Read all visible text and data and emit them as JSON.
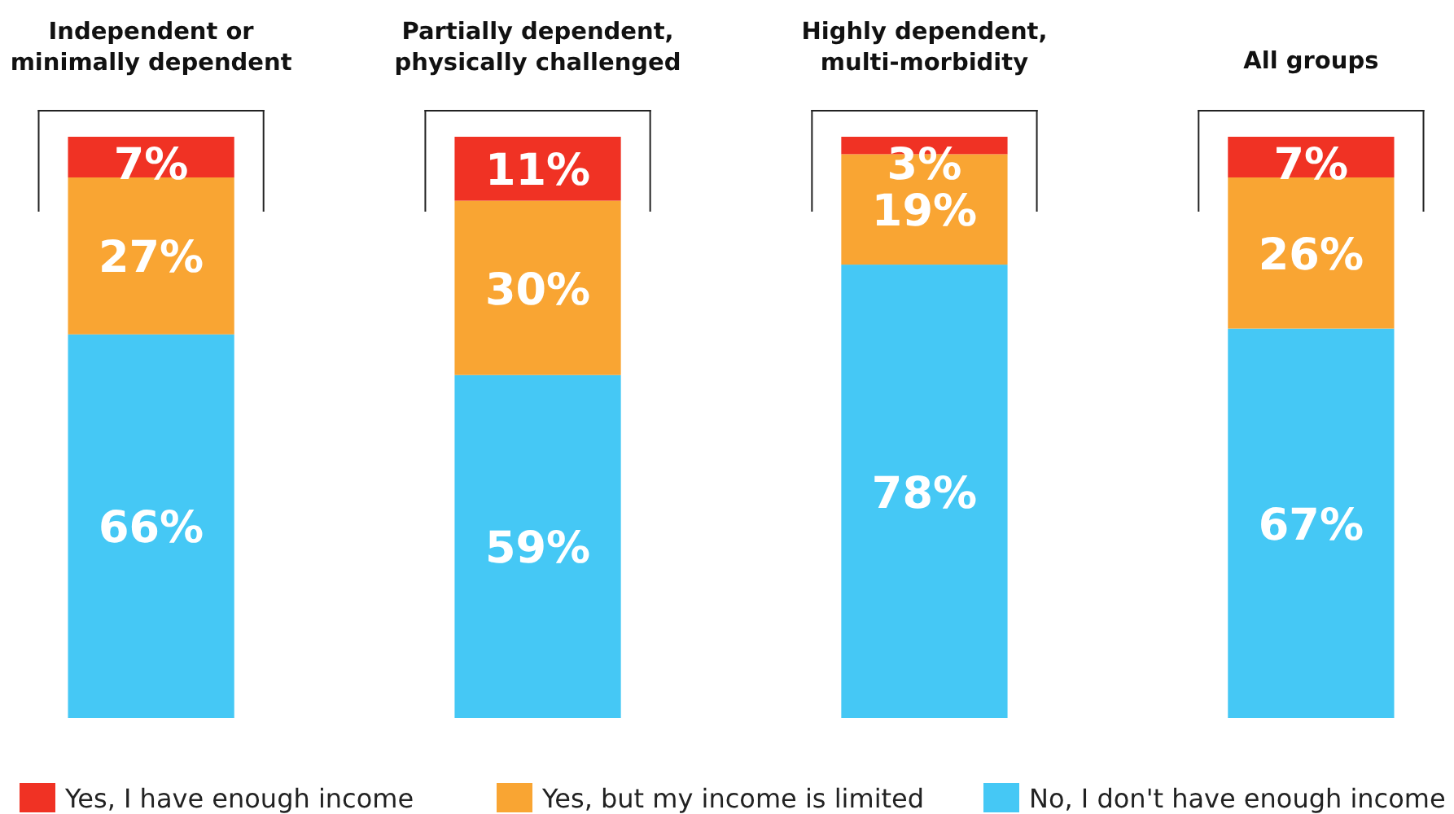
{
  "chart_data": {
    "type": "bar",
    "stacked": true,
    "categories": [
      "Independent or\nminimally dependent",
      "Partially dependent,\nphysically challenged",
      "Highly dependent,\nmulti-morbidity",
      "All groups"
    ],
    "series": [
      {
        "name": "No, I don't have enough income",
        "color": "#45c8f5",
        "values": [
          66,
          59,
          78,
          67
        ],
        "value_labels": [
          "66%",
          "59%",
          "78%",
          "67%"
        ]
      },
      {
        "name": "Yes, but my income is limited",
        "color": "#f9a533",
        "values": [
          27,
          30,
          19,
          26
        ],
        "value_labels": [
          "27%",
          "30%",
          "19%",
          "26%"
        ]
      },
      {
        "name": "Yes, I have enough income",
        "color": "#f03224",
        "values": [
          7,
          11,
          3,
          7
        ],
        "value_labels": [
          "7%",
          "11%",
          "3%",
          "7%"
        ]
      }
    ],
    "ylim": [
      0,
      100
    ],
    "legend": "bottom"
  }
}
